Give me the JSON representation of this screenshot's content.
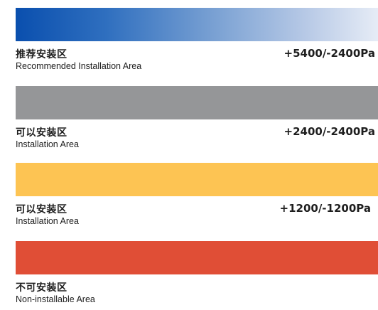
{
  "zones": [
    {
      "title_zh": "推荐安装区",
      "title_en": "Recommended Installation Area",
      "pressure": "+5400/-2400Pa",
      "color": "#0a4fae",
      "color_end": "#e6ecf6",
      "fill": "gradient"
    },
    {
      "title_zh": "可以安装区",
      "title_en": "Installation Area",
      "pressure": "+2400/-2400Pa",
      "color": "#959698"
    },
    {
      "title_zh": "可以安装区",
      "title_en": "Installation Area",
      "pressure": "+1200/-1200Pa",
      "color": "#fdc453"
    },
    {
      "title_zh": "不可安装区",
      "title_en": "Non-installable Area",
      "pressure": "",
      "color": "#e04e36"
    }
  ]
}
